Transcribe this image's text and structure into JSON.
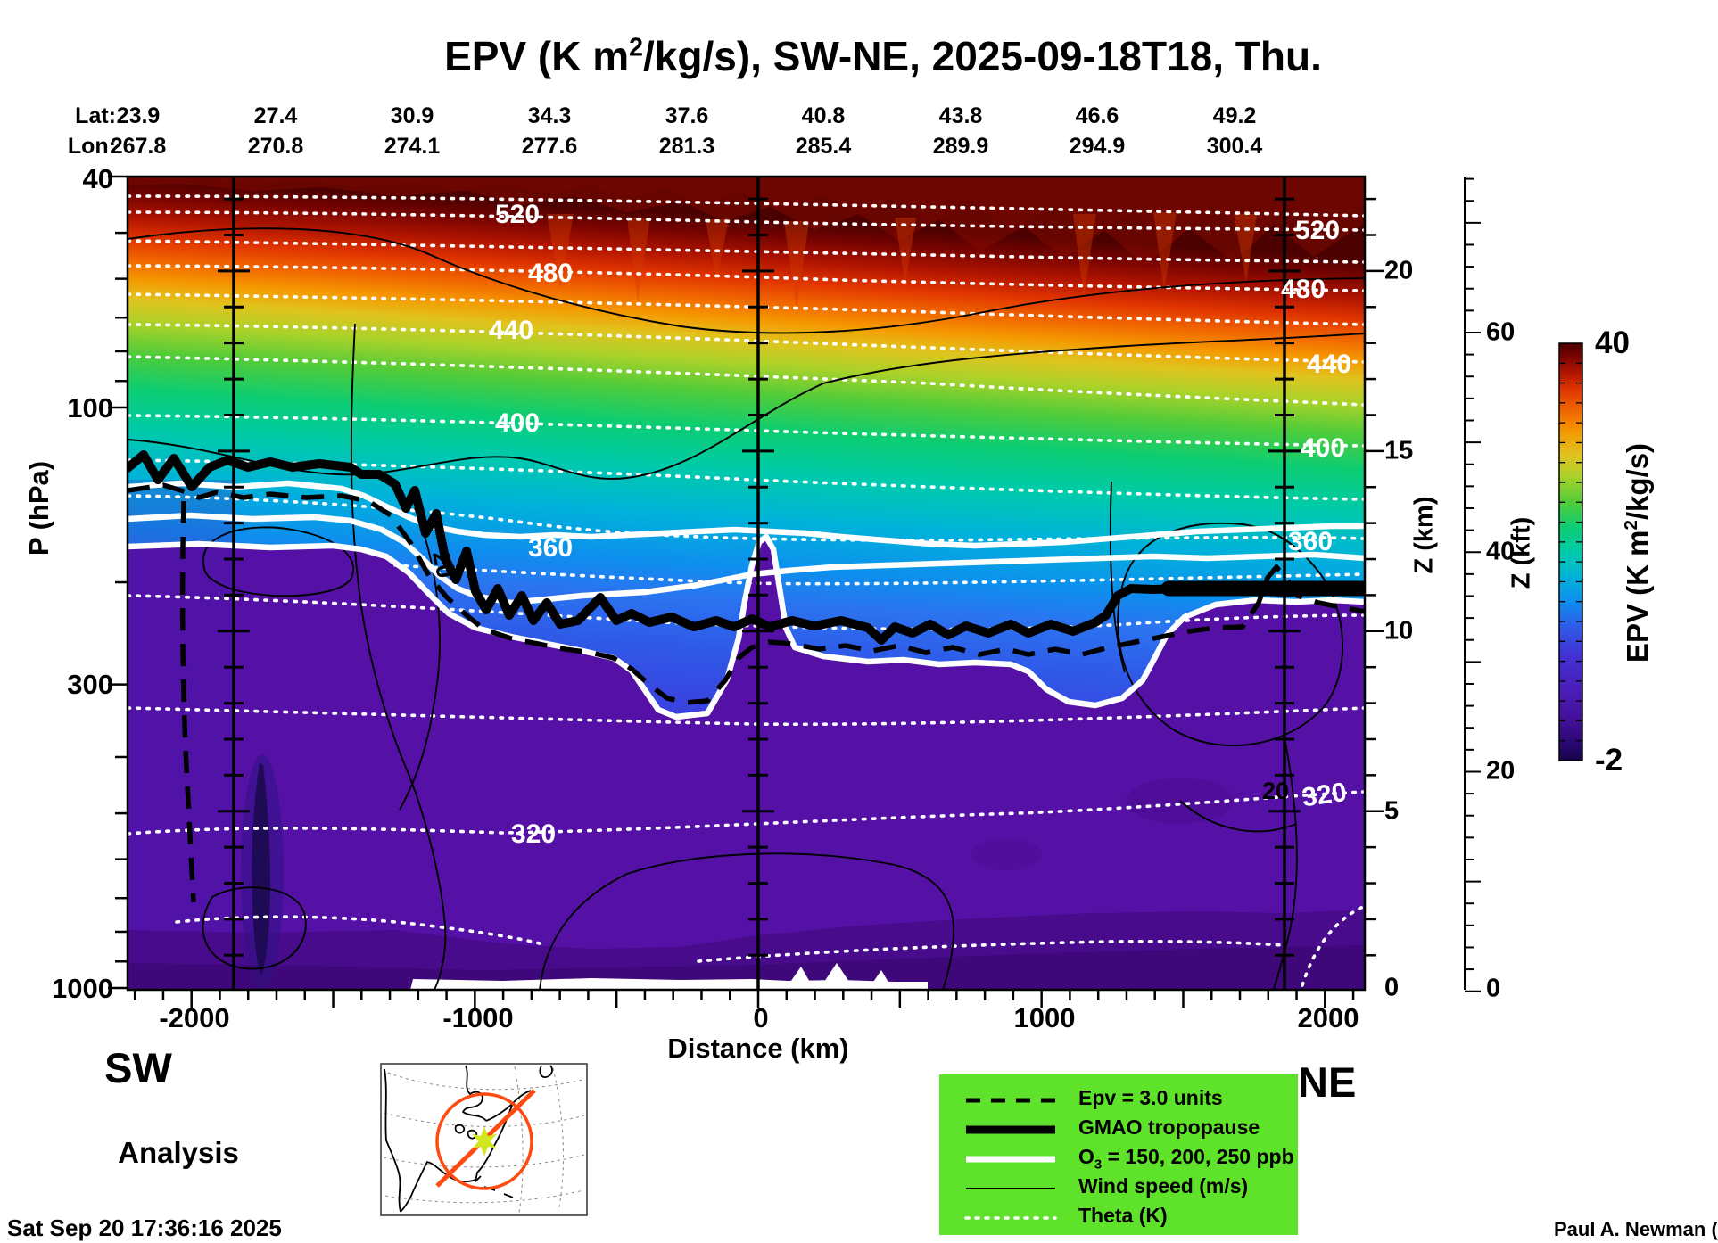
{
  "title": {
    "pre": "EPV (K m",
    "sup": "2",
    "post": "/kg/s), SW-NE, 2025-09-18T18, Thu."
  },
  "top_axis": {
    "lat_prefix": "Lat:",
    "lon_prefix": "Lon:",
    "lat": [
      "23.9",
      "27.4",
      "30.9",
      "34.3",
      "37.6",
      "40.8",
      "43.8",
      "46.6",
      "49.2"
    ],
    "lon": [
      "267.8",
      "270.8",
      "274.1",
      "277.6",
      "281.3",
      "285.4",
      "289.9",
      "294.9",
      "300.4"
    ]
  },
  "p_axis": {
    "label": "P (hPa)",
    "ticks": [
      "40",
      "100",
      "300",
      "1000"
    ]
  },
  "x_axis": {
    "label": "Distance (km)",
    "ticks": [
      "-2000",
      "-1000",
      "0",
      "1000",
      "2000"
    ]
  },
  "zkm_axis": {
    "label": "Z (km)",
    "ticks": [
      "20",
      "15",
      "10",
      "5",
      "0"
    ]
  },
  "zkft_axis": {
    "label": "Z (kft)",
    "ticks": [
      "60",
      "40",
      "20",
      "0"
    ]
  },
  "colorbar": {
    "max": "40",
    "min": "-2",
    "label_pre": "EPV (K m",
    "label_sup": "2",
    "label_post": "/kg/s)"
  },
  "corner_labels": {
    "sw": "SW",
    "ne": "NE"
  },
  "footer": {
    "analysis": "Analysis",
    "timestamp": "Sat Sep 20 17:36:16 2025",
    "credit": "Paul A. Newman (NASA"
  },
  "legend": {
    "items": [
      {
        "label": "Epv = 3.0 units",
        "sub": "",
        "post": ""
      },
      {
        "label": "GMAO tropopause",
        "sub": "",
        "post": ""
      },
      {
        "label": "O",
        "sub": "3",
        "post": " = 150, 200, 250 ppb"
      },
      {
        "label": "Wind speed (m/s)",
        "sub": "",
        "post": ""
      },
      {
        "label": "Theta (K)",
        "sub": "",
        "post": ""
      }
    ]
  },
  "contour_labels": {
    "theta": [
      "520",
      "480",
      "440",
      "400",
      "360",
      "320"
    ],
    "wind": "20"
  },
  "colors": {
    "legend_bg": "#5fe32a",
    "section_line_orange": "#ff4a10",
    "waypoint_star_green": "#d2e61e",
    "troposphere_purple": "#5511a6",
    "stratosphere_top_maroon": "#4a0100"
  },
  "chart_data": {
    "type": "heatmap",
    "title": "EPV (K m2/kg/s), SW-NE, 2025-09-18T18, Thu.",
    "xlabel": "Distance (km)",
    "x_ticks": [
      -2000,
      -1000,
      0,
      1000,
      2000
    ],
    "x_range": [
      -2225,
      2140
    ],
    "ylabel": "P (hPa)",
    "y_scale": "log",
    "y_range": [
      40,
      1000
    ],
    "y_ticks": [
      40,
      100,
      300,
      1000
    ],
    "secondary_y_axes": [
      {
        "label": "Z (km)",
        "ticks": [
          20,
          15,
          10,
          5,
          0
        ]
      },
      {
        "label": "Z (kft)",
        "ticks": [
          60,
          40,
          20,
          0
        ]
      }
    ],
    "top_axis": {
      "lat": [
        23.9,
        27.4,
        30.9,
        34.3,
        37.6,
        40.8,
        43.8,
        46.6,
        49.2
      ],
      "lon": [
        267.8,
        270.8,
        274.1,
        277.6,
        281.3,
        285.4,
        289.9,
        294.9,
        300.4
      ]
    },
    "colorbar": {
      "label": "EPV (K m2/kg/s)",
      "min": -2,
      "max": 40,
      "colormap": "rainbow",
      "orientation": "vertical"
    },
    "overlays": [
      {
        "name": "Theta (K)",
        "style": "white dotted",
        "labeled_levels": [
          320,
          360,
          400,
          440,
          480,
          520
        ]
      },
      {
        "name": "Epv = 3.0 units",
        "style": "black dashed",
        "level": 3.0
      },
      {
        "name": "GMAO tropopause",
        "style": "black thick"
      },
      {
        "name": "O3 (ppb)",
        "style": "white thick",
        "levels": [
          150,
          200,
          250
        ]
      },
      {
        "name": "Wind speed (m/s)",
        "style": "black thin",
        "labeled_levels": [
          20
        ]
      }
    ],
    "tropopause_hPa_by_distance_km": [
      [
        -2225,
        125
      ],
      [
        -1800,
        124
      ],
      [
        -1400,
        130
      ],
      [
        -1150,
        178
      ],
      [
        -900,
        230
      ],
      [
        -500,
        228
      ],
      [
        0,
        232
      ],
      [
        400,
        230
      ],
      [
        800,
        233
      ],
      [
        1100,
        212
      ],
      [
        1500,
        205
      ],
      [
        2140,
        205
      ]
    ],
    "field_summary": {
      "epv_at_40hPa": 40,
      "epv_mid_stratosphere": "10-25",
      "epv_troposphere": "0-2",
      "description": "EPV decreases from ~40 K m2/kg/s at 40 hPa (dark maroon) through rainbow colors to near 0 (purple) in the troposphere; the tropopause and ozone contours slope downward from SW (~125 hPa) to NE (~205-235 hPa), with a deep fold near -1000 to -700 km."
    },
    "section": {
      "orientation": "SW-NE",
      "datetime": "2025-09-18T18",
      "weekday": "Thu",
      "source": "Analysis"
    }
  }
}
